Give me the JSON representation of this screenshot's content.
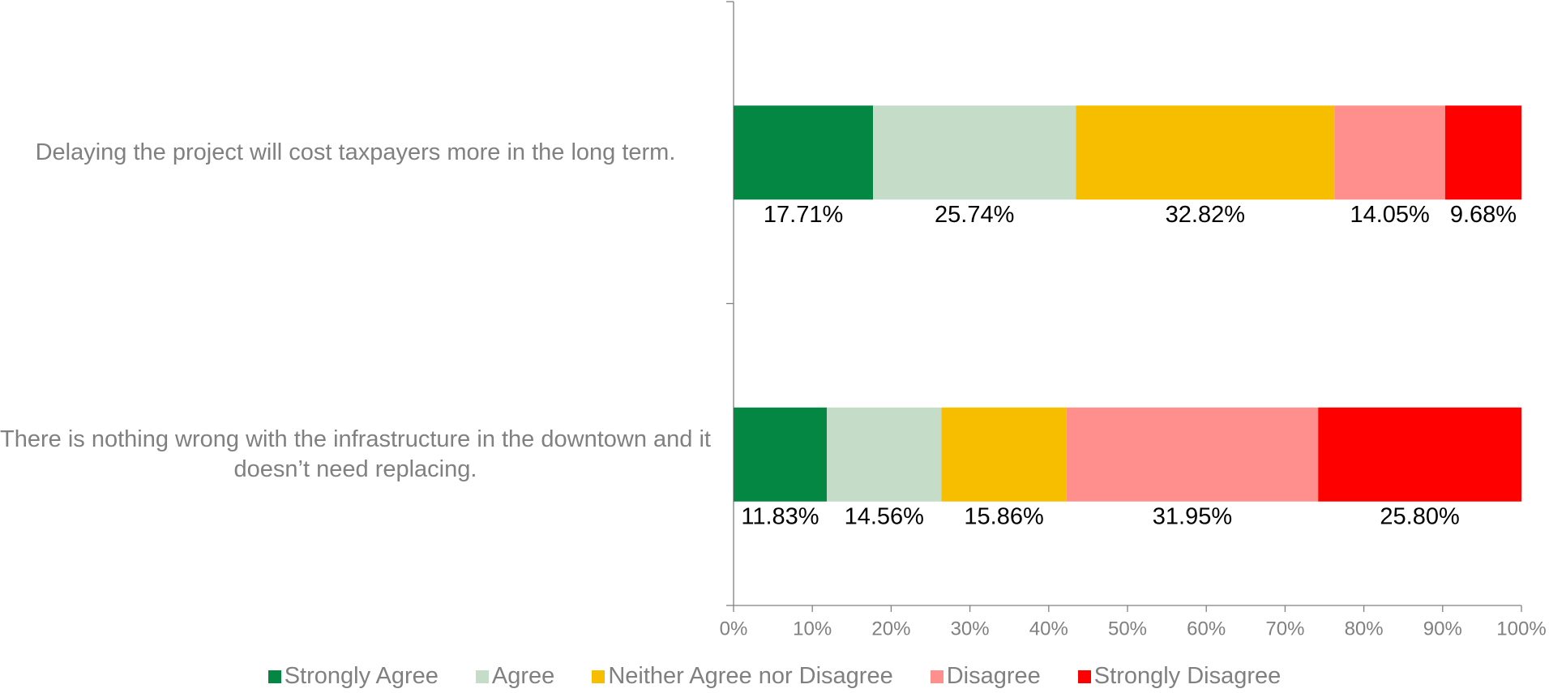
{
  "chart_data": {
    "type": "stacked_bar_horizontal",
    "categories": [
      "Delaying the project will cost taxpayers more in the long term.",
      "There is nothing wrong with the infrastructure in the downtown and it doesn’t need replacing."
    ],
    "series": [
      {
        "name": "Strongly Agree",
        "color": "#058744",
        "values": [
          17.71,
          11.83
        ],
        "value_labels": [
          "17.71%",
          "11.83%"
        ]
      },
      {
        "name": "Agree",
        "color": "#c4dcc8",
        "values": [
          25.74,
          14.56
        ],
        "value_labels": [
          "25.74%",
          "14.56%"
        ]
      },
      {
        "name": "Neither Agree nor Disagree",
        "color": "#f7be00",
        "values": [
          32.82,
          15.86
        ],
        "value_labels": [
          "32.82%",
          "15.86%"
        ]
      },
      {
        "name": "Disagree",
        "color": "#ff8f8c",
        "values": [
          14.05,
          31.95
        ],
        "value_labels": [
          "14.05%",
          "31.95%"
        ]
      },
      {
        "name": "Strongly Disagree",
        "color": "#ff0000",
        "values": [
          9.68,
          25.8
        ],
        "value_labels": [
          "9.68%",
          "25.80%"
        ]
      }
    ],
    "xlim": [
      0,
      100
    ],
    "xticks": [
      {
        "value": 0,
        "label": "0%"
      },
      {
        "value": 10,
        "label": "10%"
      },
      {
        "value": 20,
        "label": "20%"
      },
      {
        "value": 30,
        "label": "30%"
      },
      {
        "value": 40,
        "label": "40%"
      },
      {
        "value": 50,
        "label": "50%"
      },
      {
        "value": 60,
        "label": "60%"
      },
      {
        "value": 70,
        "label": "70%"
      },
      {
        "value": 80,
        "label": "80%"
      },
      {
        "value": 90,
        "label": "90%"
      },
      {
        "value": 100,
        "label": "100%"
      }
    ],
    "legend": "bottom"
  }
}
